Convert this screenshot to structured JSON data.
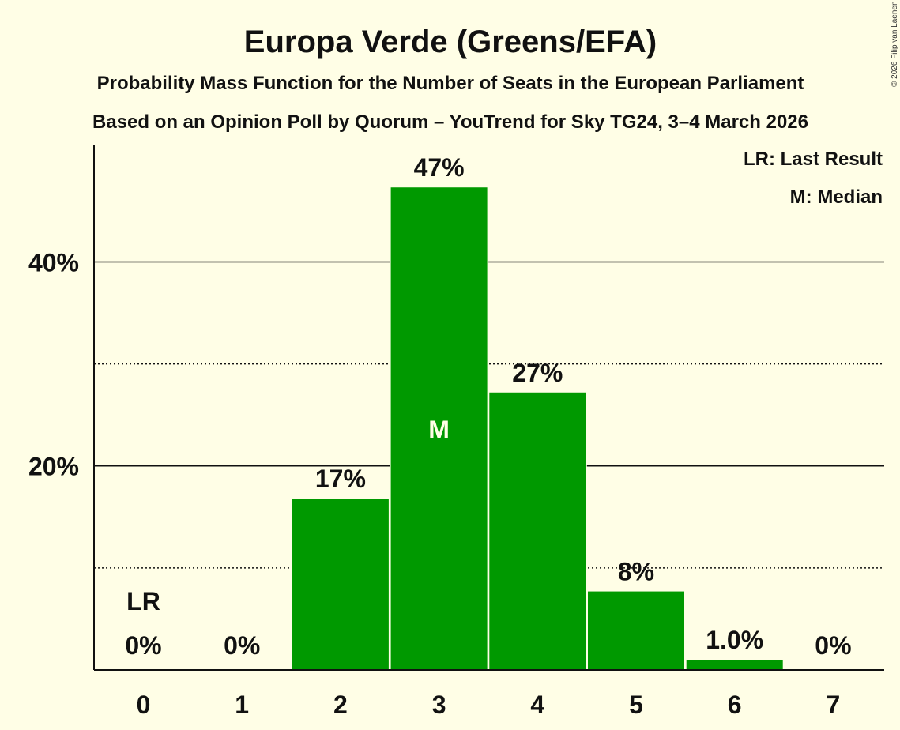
{
  "chart_data": {
    "type": "bar",
    "title": "Europa Verde (Greens/EFA)",
    "subtitle1": "Probability Mass Function for the Number of Seats in the European Parliament",
    "subtitle2": "Based on an Opinion Poll by Quorum – YouTrend for Sky TG24, 3–4 March 2026",
    "copyright": "© 2026 Filip van Laenen",
    "categories": [
      "0",
      "1",
      "2",
      "3",
      "4",
      "5",
      "6",
      "7"
    ],
    "values": [
      0,
      0,
      16.8,
      47.3,
      27.2,
      7.7,
      1.0,
      0
    ],
    "value_labels": [
      "0%",
      "0%",
      "17%",
      "47%",
      "27%",
      "8%",
      "1.0%",
      "0%"
    ],
    "ylim": [
      0,
      51.5
    ],
    "y_solid_gridlines": [
      20,
      40
    ],
    "y_dotted_gridlines": [
      10,
      30
    ],
    "ytick_labels": [
      {
        "value": 20,
        "label": "20%"
      },
      {
        "value": 40,
        "label": "40%"
      }
    ],
    "last_result_index": 0,
    "last_result_label": "LR",
    "median_index": 3,
    "median_label": "M",
    "legend": [
      "LR: Last Result",
      "M: Median"
    ],
    "legend_position": "top-right",
    "colors": {
      "bar": "#009900",
      "background": "#FFFEE6",
      "text": "#111111",
      "median_text": "#FFFEE6"
    }
  }
}
